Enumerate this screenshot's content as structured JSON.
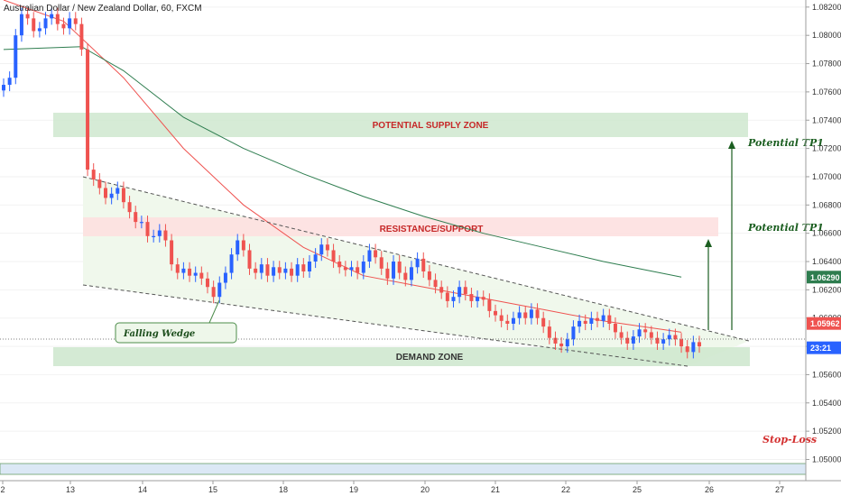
{
  "title": "Australian Dollar / New Zealand Dollar, 60, FXCM",
  "colors": {
    "up": "#2962ff",
    "down": "#ef5350",
    "ma_fast": "#ef5350",
    "ma_slow": "#2e7d4f",
    "supply_zone": "#cfe8cf",
    "demand_zone": "#cfe8cf",
    "resistance_zone": "#fde0e0",
    "wedge_fill": "#eef7ea",
    "arrow": "#1b5e20",
    "stop_loss": "#d32f2f"
  },
  "chart_data": {
    "type": "candlestick",
    "instrument": "Australian Dollar / New Zealand Dollar",
    "timeframe": "60",
    "source": "FXCM",
    "ylim": [
      1.0485,
      1.0825
    ],
    "price_axis_ticks": [
      "1.08200",
      "1.08000",
      "1.07800",
      "1.07600",
      "1.07400",
      "1.07200",
      "1.07000",
      "1.06800",
      "1.06600",
      "1.06400",
      "1.06200",
      "1.06000",
      "1.05800",
      "1.05600",
      "1.05400",
      "1.05200",
      "1.05000"
    ],
    "time_axis_ticks": [
      "2",
      "13",
      "14",
      "15",
      "18",
      "19",
      "20",
      "21",
      "22",
      "25",
      "26",
      "27"
    ],
    "price_labels": [
      {
        "text": "1.06290",
        "value": 1.0629,
        "color": "#2e7d4f"
      },
      {
        "text": "1.05962",
        "value": 1.05962,
        "color": "#ef5350"
      },
      {
        "text": "23:21",
        "value": 1.0579,
        "color": "#2962ff"
      }
    ],
    "close_series": [
      1.0765,
      1.077,
      1.08,
      1.0815,
      1.0812,
      1.0803,
      1.0805,
      1.0812,
      1.0815,
      1.0808,
      1.0805,
      1.0812,
      1.0808,
      1.079,
      1.0705,
      1.0698,
      1.0692,
      1.0685,
      1.0688,
      1.0692,
      1.0682,
      1.0675,
      1.0668,
      1.0668,
      1.0658,
      1.0658,
      1.0662,
      1.0655,
      1.0638,
      1.0632,
      1.0635,
      1.063,
      1.0632,
      1.0628,
      1.0622,
      1.0615,
      1.0625,
      1.0632,
      1.0645,
      1.0655,
      1.0648,
      1.0635,
      1.0632,
      1.0638,
      1.063,
      1.0636,
      1.0632,
      1.0635,
      1.063,
      1.0638,
      1.0633,
      1.064,
      1.0645,
      1.0652,
      1.0648,
      1.064,
      1.0636,
      1.0634,
      1.0636,
      1.0632,
      1.064,
      1.0648,
      1.0643,
      1.0635,
      1.0628,
      1.064,
      1.0632,
      1.0627,
      1.0636,
      1.0642,
      1.0633,
      1.0627,
      1.0622,
      1.0618,
      1.0612,
      1.0615,
      1.0622,
      1.0617,
      1.0612,
      1.0615,
      1.0613,
      1.0605,
      1.0602,
      1.0598,
      1.0596,
      1.06,
      1.0604,
      1.06,
      1.0606,
      1.06,
      1.0594,
      1.0586,
      1.0582,
      1.058,
      1.0585,
      1.0594,
      1.0598,
      1.0596,
      1.06,
      1.0598,
      1.0602,
      1.0596,
      1.059,
      1.0586,
      1.0582,
      1.0587,
      1.0592,
      1.059,
      1.0586,
      1.0582,
      1.0585,
      1.0588,
      1.0585,
      1.058,
      1.0576,
      1.0583,
      1.058
    ],
    "moving_averages": [
      {
        "color": "#ef5350",
        "points": [
          [
            0,
            1.0825
          ],
          [
            10,
            1.081
          ],
          [
            20,
            1.077
          ],
          [
            30,
            1.072
          ],
          [
            40,
            1.068
          ],
          [
            50,
            1.065
          ],
          [
            60,
            1.063
          ],
          [
            70,
            1.0622
          ],
          [
            80,
            1.0614
          ],
          [
            90,
            1.0606
          ],
          [
            100,
            1.0598
          ],
          [
            113,
            1.059
          ]
        ]
      },
      {
        "color": "#2e7d4f",
        "points": [
          [
            0,
            1.079
          ],
          [
            13,
            1.0792
          ],
          [
            20,
            1.0775
          ],
          [
            30,
            1.0742
          ],
          [
            40,
            1.072
          ],
          [
            50,
            1.0702
          ],
          [
            60,
            1.0686
          ],
          [
            70,
            1.0672
          ],
          [
            80,
            1.066
          ],
          [
            90,
            1.065
          ],
          [
            100,
            1.064
          ],
          [
            113,
            1.0629
          ]
        ]
      }
    ],
    "zones": [
      {
        "label": "POTENTIAL SUPPLY ZONE",
        "top": 1.07425,
        "bottom": 1.07265,
        "label_color": "#c62828"
      },
      {
        "label": "RESISTANCE/SUPPORT",
        "top": 1.06685,
        "bottom": 1.0656,
        "label_color": "#c62828"
      },
      {
        "label": "DEMAND ZONE",
        "top": 1.05805,
        "bottom": 1.0565,
        "label_color": "#333333"
      }
    ],
    "annotations": {
      "falling_wedge": "Falling Wedge",
      "tp1_upper": "Potential TP1",
      "tp1_lower": "Potential TP1",
      "stop_loss": "Stop-Loss"
    }
  }
}
